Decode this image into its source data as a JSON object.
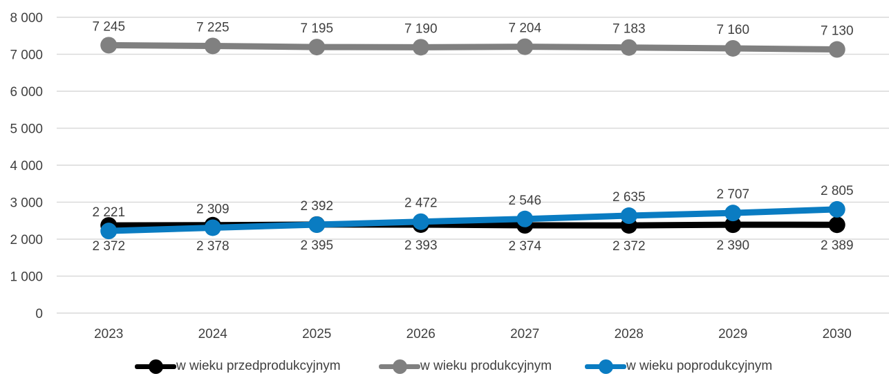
{
  "chart_data": {
    "type": "line",
    "title": "",
    "xlabel": "",
    "ylabel": "",
    "categories": [
      "2023",
      "2024",
      "2025",
      "2026",
      "2027",
      "2028",
      "2029",
      "2030"
    ],
    "y_ticks": [
      "0",
      "1 000",
      "2 000",
      "3 000",
      "4 000",
      "5 000",
      "6 000",
      "7 000",
      "8 000"
    ],
    "ylim": [
      0,
      8000
    ],
    "grid": true,
    "legend_position": "bottom",
    "series": [
      {
        "name": "w wieku przedprodukcyjnym",
        "color": "#000000",
        "values": [
          2372,
          2378,
          2395,
          2393,
          2374,
          2372,
          2390,
          2389
        ],
        "labels": [
          "2 372",
          "2 378",
          "2 395",
          "2 393",
          "2 374",
          "2 372",
          "2 390",
          "2 389"
        ],
        "label_side": "below"
      },
      {
        "name": "w wieku produkcyjnym",
        "color": "#808080",
        "values": [
          7245,
          7225,
          7195,
          7190,
          7204,
          7183,
          7160,
          7130
        ],
        "labels": [
          "7 245",
          "7 225",
          "7 195",
          "7 190",
          "7 204",
          "7 183",
          "7 160",
          "7 130"
        ],
        "label_side": "above"
      },
      {
        "name": "w wieku poprodukcyjnym",
        "color": "#0a7cc2",
        "values": [
          2221,
          2309,
          2392,
          2472,
          2546,
          2635,
          2707,
          2805
        ],
        "labels": [
          "2 221",
          "2 309",
          "2 392",
          "2 472",
          "2 546",
          "2 635",
          "2 707",
          "2 805"
        ],
        "label_side": "above"
      }
    ]
  }
}
